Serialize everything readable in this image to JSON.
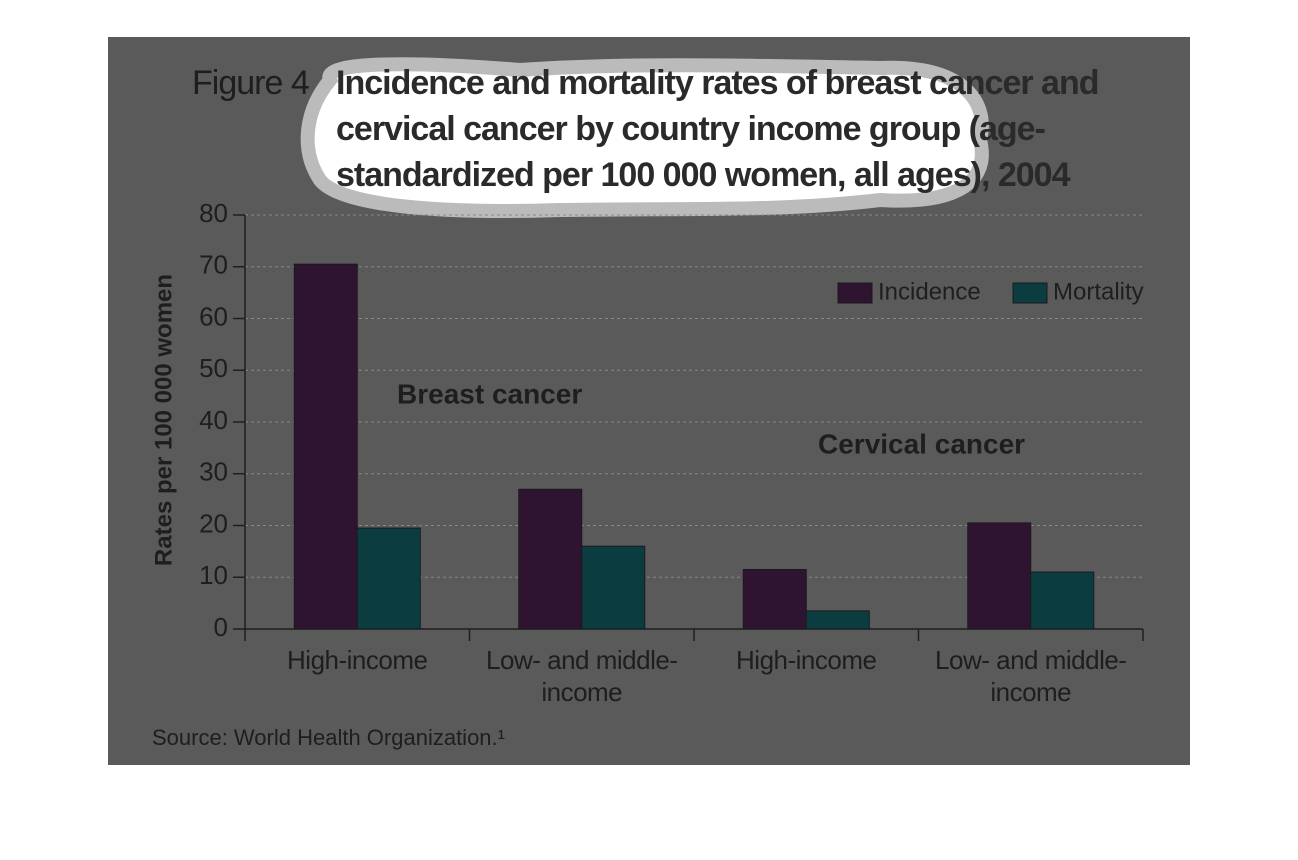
{
  "chart_data": {
    "type": "bar",
    "figure_label": "Figure 4",
    "title": "Incidence and mortality rates of breast cancer and cervical cancer by country income group (age-standardized per 100 000 women, all ages), 2004",
    "y_label": "Rates per 100 000 women",
    "categories": [
      "High-income",
      "Low- and middle-income",
      "High-income",
      "Low- and middle-income"
    ],
    "groups": [
      "Breast cancer",
      "Cervical cancer"
    ],
    "series": [
      {
        "name": "Incidence",
        "color": "#2e1430",
        "values": [
          70.5,
          27,
          11.5,
          20.5
        ]
      },
      {
        "name": "Mortality",
        "color": "#0a3c40",
        "values": [
          19.5,
          16,
          3.5,
          11
        ]
      }
    ],
    "ylim": [
      0,
      80
    ],
    "yticks": [
      0,
      10,
      20,
      30,
      40,
      50,
      60,
      70,
      80
    ],
    "grid": true,
    "legend": "top-right",
    "source": "Source: World Health Organization.¹"
  }
}
